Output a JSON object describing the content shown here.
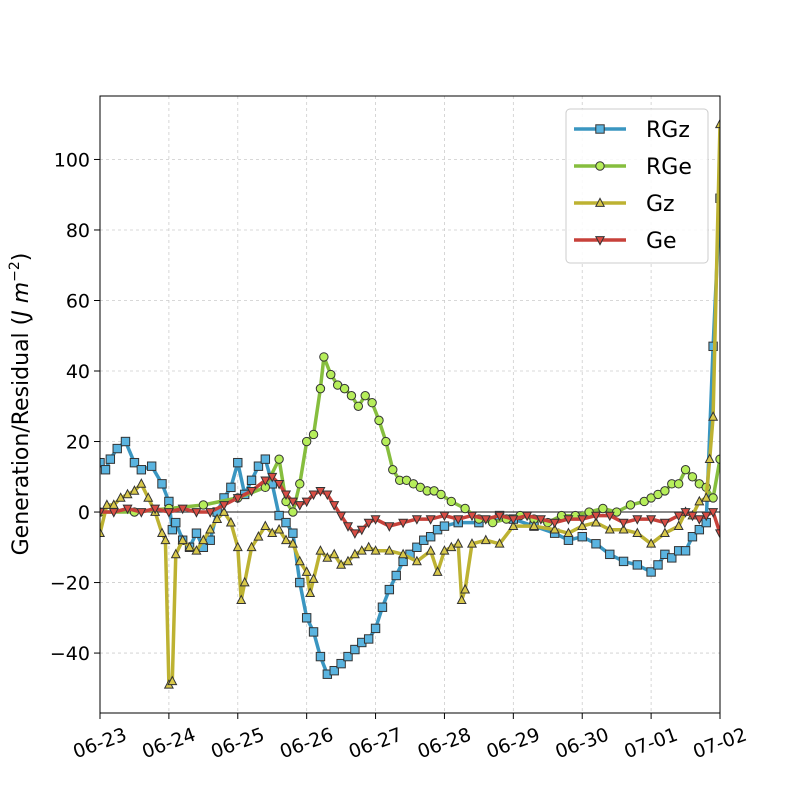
{
  "chart_data": {
    "type": "line",
    "title": "",
    "xlabel": "",
    "ylabel": "Generation/Residual (J m^-2)",
    "ylabel_parts": {
      "main": "Generation/Residual (",
      "unit": "J m",
      "exp": "−2",
      "close": ")"
    },
    "x_ticks": [
      "06-23",
      "06-24",
      "06-25",
      "06-26",
      "06-27",
      "06-28",
      "06-29",
      "06-30",
      "07-01",
      "07-02"
    ],
    "x_range_days": [
      0,
      9
    ],
    "ylim": [
      -57,
      118
    ],
    "y_ticks": [
      -40,
      -20,
      0,
      20,
      40,
      60,
      80,
      100
    ],
    "y_tick_labels": [
      "−40",
      "−20",
      "0",
      "20",
      "40",
      "60",
      "80",
      "100"
    ],
    "grid": true,
    "legend_position": "top-right",
    "series": [
      {
        "name": "RGz",
        "color": "#3a96c1",
        "marker": "square",
        "marker_fill": "#5ab4e0",
        "points": [
          [
            0,
            14
          ],
          [
            0.08,
            12
          ],
          [
            0.15,
            15
          ],
          [
            0.25,
            18
          ],
          [
            0.37,
            20
          ],
          [
            0.5,
            14
          ],
          [
            0.6,
            12
          ],
          [
            0.75,
            13
          ],
          [
            0.9,
            8
          ],
          [
            1.0,
            3
          ],
          [
            1.05,
            -5
          ],
          [
            1.1,
            -3
          ],
          [
            1.2,
            -8
          ],
          [
            1.3,
            -10
          ],
          [
            1.4,
            -6
          ],
          [
            1.5,
            -10
          ],
          [
            1.6,
            -8
          ],
          [
            1.7,
            0
          ],
          [
            1.8,
            4
          ],
          [
            1.9,
            7
          ],
          [
            2.0,
            14
          ],
          [
            2.1,
            5
          ],
          [
            2.2,
            9
          ],
          [
            2.3,
            13
          ],
          [
            2.4,
            15
          ],
          [
            2.5,
            8
          ],
          [
            2.6,
            -1
          ],
          [
            2.7,
            -3
          ],
          [
            2.8,
            -6
          ],
          [
            2.9,
            -20
          ],
          [
            3.0,
            -30
          ],
          [
            3.1,
            -34
          ],
          [
            3.2,
            -41
          ],
          [
            3.3,
            -46
          ],
          [
            3.4,
            -45
          ],
          [
            3.5,
            -43
          ],
          [
            3.6,
            -41
          ],
          [
            3.7,
            -39
          ],
          [
            3.8,
            -37
          ],
          [
            3.9,
            -36
          ],
          [
            4.0,
            -33
          ],
          [
            4.1,
            -27
          ],
          [
            4.2,
            -22
          ],
          [
            4.3,
            -18
          ],
          [
            4.4,
            -14
          ],
          [
            4.5,
            -12
          ],
          [
            4.6,
            -10
          ],
          [
            4.7,
            -8
          ],
          [
            4.8,
            -7
          ],
          [
            4.9,
            -5
          ],
          [
            5.0,
            -4
          ],
          [
            5.2,
            -3
          ],
          [
            5.5,
            -3
          ],
          [
            5.8,
            -1
          ],
          [
            6.0,
            -2
          ],
          [
            6.3,
            -4
          ],
          [
            6.6,
            -6
          ],
          [
            6.8,
            -8
          ],
          [
            7.0,
            -7
          ],
          [
            7.2,
            -9
          ],
          [
            7.4,
            -12
          ],
          [
            7.6,
            -14
          ],
          [
            7.8,
            -15
          ],
          [
            8.0,
            -17
          ],
          [
            8.1,
            -15
          ],
          [
            8.2,
            -12
          ],
          [
            8.3,
            -13
          ],
          [
            8.4,
            -11
          ],
          [
            8.5,
            -11
          ],
          [
            8.6,
            -7
          ],
          [
            8.7,
            -5
          ],
          [
            8.8,
            -3
          ],
          [
            8.9,
            47
          ],
          [
            9.0,
            89
          ]
        ]
      },
      {
        "name": "RGe",
        "color": "#86be3e",
        "marker": "circle",
        "marker_fill": "#b6ee5a",
        "points": [
          [
            0,
            0
          ],
          [
            0.5,
            0
          ],
          [
            1.0,
            1
          ],
          [
            1.5,
            2
          ],
          [
            2.0,
            4
          ],
          [
            2.4,
            7
          ],
          [
            2.6,
            15
          ],
          [
            2.7,
            3
          ],
          [
            2.8,
            0
          ],
          [
            2.9,
            8
          ],
          [
            3.0,
            20
          ],
          [
            3.1,
            22
          ],
          [
            3.2,
            35
          ],
          [
            3.25,
            44
          ],
          [
            3.35,
            39
          ],
          [
            3.45,
            36
          ],
          [
            3.55,
            35
          ],
          [
            3.65,
            33
          ],
          [
            3.75,
            30
          ],
          [
            3.85,
            33
          ],
          [
            3.95,
            31
          ],
          [
            4.05,
            26
          ],
          [
            4.15,
            20
          ],
          [
            4.25,
            12
          ],
          [
            4.35,
            9
          ],
          [
            4.45,
            9
          ],
          [
            4.55,
            8
          ],
          [
            4.65,
            7
          ],
          [
            4.75,
            6
          ],
          [
            4.85,
            6
          ],
          [
            4.95,
            5
          ],
          [
            5.1,
            3
          ],
          [
            5.3,
            1
          ],
          [
            5.5,
            -2
          ],
          [
            5.7,
            -3
          ],
          [
            5.9,
            -2
          ],
          [
            6.1,
            -1
          ],
          [
            6.3,
            -2
          ],
          [
            6.5,
            -3
          ],
          [
            6.7,
            -1
          ],
          [
            6.9,
            -1
          ],
          [
            7.1,
            0
          ],
          [
            7.3,
            1
          ],
          [
            7.5,
            0
          ],
          [
            7.7,
            2
          ],
          [
            7.9,
            3
          ],
          [
            8.0,
            4
          ],
          [
            8.1,
            5
          ],
          [
            8.2,
            6
          ],
          [
            8.3,
            8
          ],
          [
            8.4,
            8
          ],
          [
            8.5,
            12
          ],
          [
            8.6,
            10
          ],
          [
            8.7,
            8
          ],
          [
            8.8,
            7
          ],
          [
            8.9,
            4
          ],
          [
            9.0,
            15
          ]
        ]
      },
      {
        "name": "Gz",
        "color": "#bdb232",
        "marker": "triangle-up",
        "marker_fill": "#d9c94a",
        "points": [
          [
            0,
            -6
          ],
          [
            0.1,
            2
          ],
          [
            0.2,
            2
          ],
          [
            0.3,
            4
          ],
          [
            0.4,
            5
          ],
          [
            0.5,
            6
          ],
          [
            0.6,
            8
          ],
          [
            0.7,
            4
          ],
          [
            0.8,
            0
          ],
          [
            0.9,
            -6
          ],
          [
            0.95,
            -8
          ],
          [
            1.0,
            -49
          ],
          [
            1.05,
            -48
          ],
          [
            1.1,
            -12
          ],
          [
            1.2,
            -8
          ],
          [
            1.3,
            -10
          ],
          [
            1.4,
            -11
          ],
          [
            1.5,
            -8
          ],
          [
            1.6,
            -5
          ],
          [
            1.7,
            -2
          ],
          [
            1.8,
            0
          ],
          [
            1.9,
            -3
          ],
          [
            2.0,
            -10
          ],
          [
            2.05,
            -25
          ],
          [
            2.1,
            -20
          ],
          [
            2.2,
            -10
          ],
          [
            2.3,
            -7
          ],
          [
            2.4,
            -4
          ],
          [
            2.5,
            -6
          ],
          [
            2.6,
            -5
          ],
          [
            2.7,
            -8
          ],
          [
            2.8,
            -9
          ],
          [
            2.9,
            -14
          ],
          [
            3.0,
            -17
          ],
          [
            3.05,
            -23
          ],
          [
            3.1,
            -19
          ],
          [
            3.2,
            -11
          ],
          [
            3.3,
            -13
          ],
          [
            3.4,
            -12
          ],
          [
            3.5,
            -15
          ],
          [
            3.6,
            -14
          ],
          [
            3.7,
            -12
          ],
          [
            3.8,
            -11
          ],
          [
            3.9,
            -10
          ],
          [
            4.0,
            -11
          ],
          [
            4.2,
            -11
          ],
          [
            4.4,
            -12
          ],
          [
            4.6,
            -14
          ],
          [
            4.8,
            -11
          ],
          [
            4.9,
            -17
          ],
          [
            5.0,
            -11
          ],
          [
            5.1,
            -10
          ],
          [
            5.2,
            -9
          ],
          [
            5.25,
            -25
          ],
          [
            5.3,
            -22
          ],
          [
            5.4,
            -9
          ],
          [
            5.6,
            -8
          ],
          [
            5.8,
            -9
          ],
          [
            6.0,
            -4
          ],
          [
            6.3,
            -4
          ],
          [
            6.6,
            -5
          ],
          [
            6.8,
            -6
          ],
          [
            7.0,
            -4
          ],
          [
            7.2,
            -3
          ],
          [
            7.4,
            -5
          ],
          [
            7.6,
            -5
          ],
          [
            7.8,
            -6
          ],
          [
            8.0,
            -9
          ],
          [
            8.2,
            -6
          ],
          [
            8.4,
            -4
          ],
          [
            8.5,
            0
          ],
          [
            8.6,
            -1
          ],
          [
            8.7,
            3
          ],
          [
            8.8,
            4
          ],
          [
            8.85,
            15
          ],
          [
            8.9,
            27
          ],
          [
            9.0,
            110
          ]
        ]
      },
      {
        "name": "Ge",
        "color": "#c7413a",
        "marker": "triangle-down",
        "marker_fill": "#d94d44",
        "points": [
          [
            0,
            0
          ],
          [
            0.2,
            0
          ],
          [
            0.4,
            1
          ],
          [
            0.6,
            0
          ],
          [
            0.8,
            1
          ],
          [
            1.0,
            0
          ],
          [
            1.2,
            1
          ],
          [
            1.4,
            0
          ],
          [
            1.6,
            0
          ],
          [
            1.8,
            2
          ],
          [
            2.0,
            4
          ],
          [
            2.2,
            6
          ],
          [
            2.4,
            9
          ],
          [
            2.5,
            10
          ],
          [
            2.6,
            8
          ],
          [
            2.7,
            5
          ],
          [
            2.8,
            3
          ],
          [
            2.9,
            2
          ],
          [
            3.0,
            3
          ],
          [
            3.1,
            5
          ],
          [
            3.2,
            6
          ],
          [
            3.3,
            5
          ],
          [
            3.4,
            2
          ],
          [
            3.5,
            -1
          ],
          [
            3.6,
            -4
          ],
          [
            3.7,
            -6
          ],
          [
            3.8,
            -5
          ],
          [
            3.9,
            -3
          ],
          [
            4.0,
            -2
          ],
          [
            4.2,
            -4
          ],
          [
            4.4,
            -3
          ],
          [
            4.6,
            -2
          ],
          [
            4.8,
            -2
          ],
          [
            5.0,
            -1
          ],
          [
            5.2,
            -2
          ],
          [
            5.4,
            -1
          ],
          [
            5.6,
            -2
          ],
          [
            5.8,
            -1
          ],
          [
            6.0,
            -2
          ],
          [
            6.2,
            -1
          ],
          [
            6.4,
            -2
          ],
          [
            6.6,
            -3
          ],
          [
            6.8,
            -2
          ],
          [
            7.0,
            -2
          ],
          [
            7.2,
            -1
          ],
          [
            7.4,
            -1
          ],
          [
            7.6,
            -3
          ],
          [
            7.8,
            -2
          ],
          [
            8.0,
            -2
          ],
          [
            8.2,
            -3
          ],
          [
            8.4,
            -1
          ],
          [
            8.5,
            0
          ],
          [
            8.6,
            -1
          ],
          [
            8.7,
            -2
          ],
          [
            8.8,
            -1
          ],
          [
            8.9,
            0
          ],
          [
            9.0,
            -6
          ]
        ]
      }
    ]
  }
}
